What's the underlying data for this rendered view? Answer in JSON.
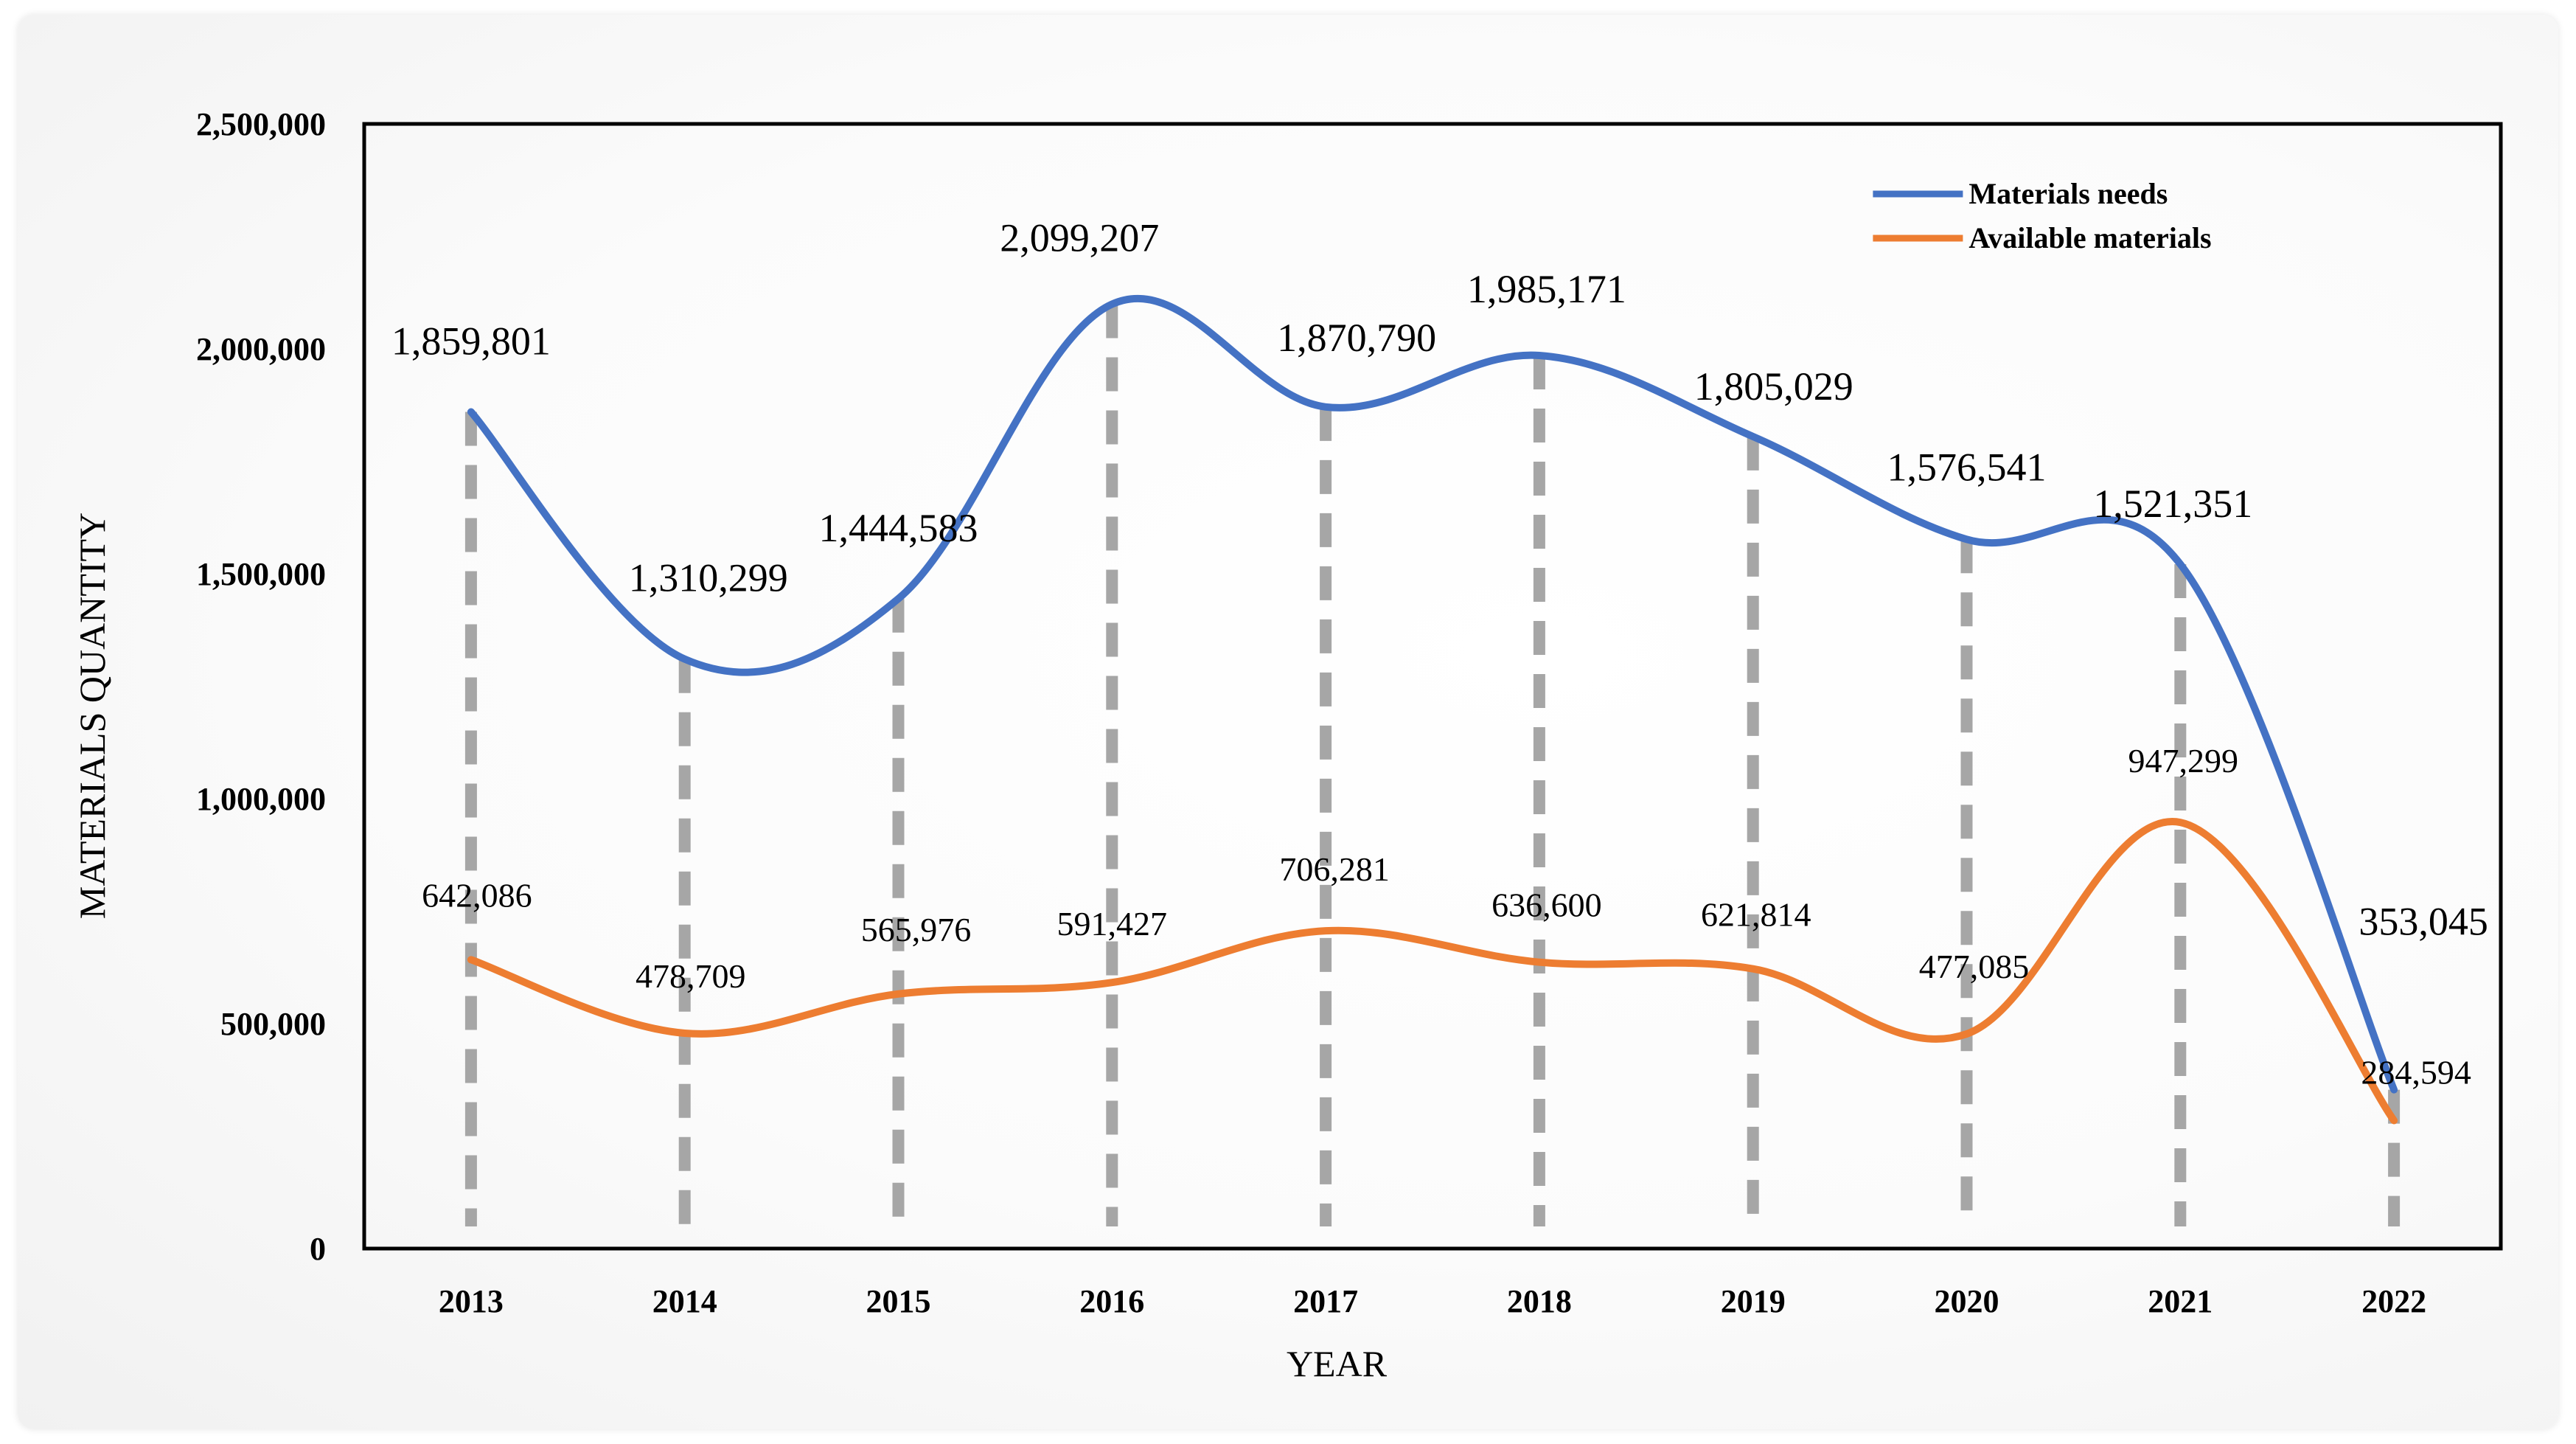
{
  "chart_data": {
    "type": "line",
    "title": "",
    "xlabel": "YEAR",
    "ylabel": "MATERIALS QUANTITY",
    "ylim": [
      0,
      2500000
    ],
    "yticks": [
      0,
      500000,
      1000000,
      1500000,
      2000000,
      2500000
    ],
    "ytick_labels": [
      "0",
      "500,000",
      "1,000,000",
      "1,500,000",
      "2,000,000",
      "2,500,000"
    ],
    "categories": [
      "2013",
      "2014",
      "2015",
      "2016",
      "2017",
      "2018",
      "2019",
      "2020",
      "2021",
      "2022"
    ],
    "legend_position": "top-right",
    "grid": false,
    "series": [
      {
        "name": "Materials needs",
        "color": "#4472C4",
        "values": [
          1859801,
          1310299,
          1444583,
          2099207,
          1870790,
          1985171,
          1805029,
          1576541,
          1521351,
          353045
        ],
        "labels": [
          "1,859,801",
          "1,310,299",
          "1,444,583",
          "2,099,207",
          "1,870,790",
          "1,985,171",
          "1,805,029",
          "1,576,541",
          "1,521,351",
          "353,045"
        ]
      },
      {
        "name": "Available materials",
        "color": "#ED7D31",
        "values": [
          642086,
          478709,
          565976,
          591427,
          706281,
          636600,
          621814,
          477085,
          947299,
          284594
        ],
        "labels": [
          "642,086",
          "478,709",
          "565,976",
          "591,427",
          "706,281",
          "636,600",
          "621,814",
          "477,085",
          "947,299",
          "284,594"
        ]
      }
    ],
    "drop_line_color": "#A6A6A6"
  }
}
